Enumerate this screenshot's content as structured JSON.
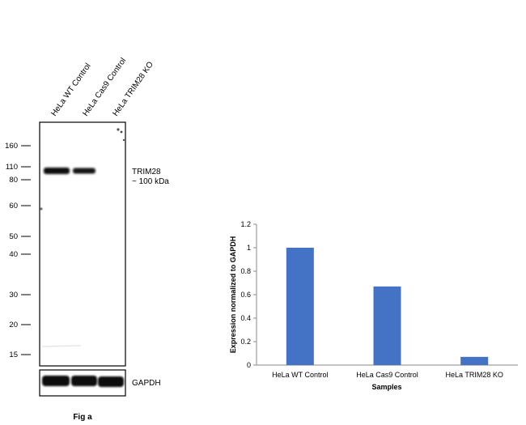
{
  "blot": {
    "lane_labels": [
      "HeLa WT Control",
      "HeLa Cas9 Control",
      "HeLa TRIM28 KO"
    ],
    "markers": [
      "160",
      "110",
      "80",
      "60",
      "50",
      "40",
      "30",
      "20",
      "15"
    ],
    "target_label": "TRIM28",
    "target_size": "~ 100 kDa",
    "loading_label": "GAPDH",
    "caption": "Fig a"
  },
  "chart_data": {
    "type": "bar",
    "categories": [
      "HeLa WT Control",
      "HeLa Cas9 Control",
      "HeLa TRIM28 KO"
    ],
    "values": [
      1.0,
      0.67,
      0.07
    ],
    "title": "",
    "xlabel": "Samples",
    "ylabel": "Expression normalized to GAPDH",
    "ylim": [
      0,
      1.2
    ],
    "yticks": [
      "0",
      "0.2",
      "0.4",
      "0.6",
      "0.8",
      "1",
      "1.2"
    ],
    "grid": false,
    "bar_color": "#4472c4"
  }
}
